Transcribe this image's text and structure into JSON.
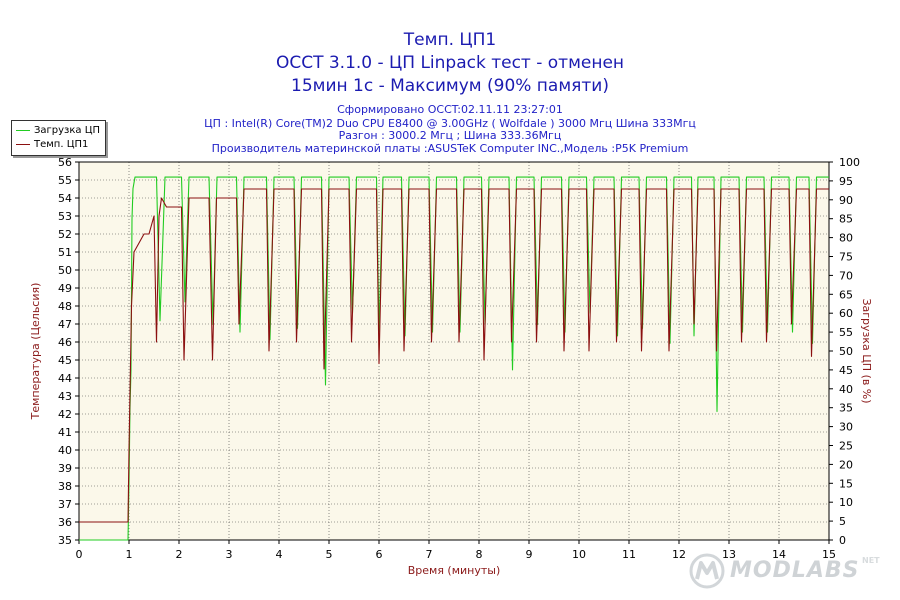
{
  "header": {
    "title1": "Темп. ЦП1",
    "title2": "OCCT 3.1.0 - ЦП Linpack тест - отменен",
    "title3": "15мин 1с - Максимум (90% памяти)",
    "info1": "Сформировано OCCT:02.11.11 23:27:01",
    "info2": "ЦП : Intel(R) Core(TM)2 Duo CPU E8400 @ 3.00GHz ( Wolfdale ) 3000 Мгц Шина 333Мгц",
    "info3": "Разгон : 3000.2 Мгц ; Шина 333.36Мгц",
    "info4": "Производитель материнской платы :ASUSTeK Computer INC.,Модель :P5K Premium"
  },
  "legend": {
    "items": [
      {
        "label": "Загрузка ЦП",
        "color": "#22cc22"
      },
      {
        "label": "Темп. ЦП1",
        "color": "#8b1010"
      }
    ]
  },
  "watermark": {
    "text": "MODLABS",
    "suffix": "NET"
  },
  "colors": {
    "load": "#22cc22",
    "temp": "#8b1010",
    "axis_text": "#8b1a1a",
    "plot_bg": "#fbf8ea",
    "grid": "#444444"
  },
  "chart_data": {
    "type": "line",
    "xlabel": "Время (минуты)",
    "ylabel_left": "Температура (Цельсия)",
    "ylabel_right": "Загрузка ЦП (в %)",
    "xlim": [
      0,
      15
    ],
    "ylim_left": [
      35,
      56
    ],
    "ylim_right": [
      0,
      100
    ],
    "x_ticks": [
      0,
      1,
      2,
      3,
      4,
      5,
      6,
      7,
      8,
      9,
      10,
      11,
      12,
      13,
      14,
      15
    ],
    "y_left_ticks": [
      35,
      36,
      37,
      38,
      39,
      40,
      41,
      42,
      43,
      44,
      45,
      46,
      47,
      48,
      49,
      50,
      51,
      52,
      53,
      54,
      55,
      56
    ],
    "y_right_ticks": [
      0,
      5,
      10,
      15,
      20,
      25,
      30,
      35,
      40,
      45,
      50,
      55,
      60,
      65,
      70,
      75,
      80,
      85,
      90,
      95,
      100
    ],
    "grid": true,
    "legend_position": "top-left",
    "series": [
      {
        "name": "Загрузка ЦП",
        "axis": "right",
        "x": [
          0,
          0.98,
          1.0,
          1.02,
          1.04,
          1.06,
          1.08,
          1.12,
          1.2,
          1.55,
          1.62,
          1.72,
          2.05,
          2.12,
          2.2,
          2.6,
          2.68,
          2.76,
          3.15,
          3.22,
          3.3,
          3.75,
          3.82,
          3.9,
          4.3,
          4.37,
          4.45,
          4.85,
          4.93,
          5.0,
          5.4,
          5.47,
          5.55,
          5.95,
          6.0,
          6.08,
          6.45,
          6.52,
          6.6,
          7.0,
          7.07,
          7.15,
          7.55,
          7.62,
          7.7,
          8.05,
          8.12,
          8.2,
          8.6,
          8.67,
          8.75,
          9.1,
          9.17,
          9.25,
          9.65,
          9.72,
          9.8,
          10.15,
          10.22,
          10.3,
          10.7,
          10.77,
          10.85,
          11.2,
          11.27,
          11.35,
          11.75,
          11.82,
          11.9,
          12.25,
          12.3,
          12.38,
          12.7,
          12.76,
          12.84,
          13.2,
          13.27,
          13.35,
          13.7,
          13.77,
          13.85,
          14.2,
          14.27,
          14.35,
          14.6,
          14.67,
          14.75,
          15.0
        ],
        "values": [
          0,
          0,
          15,
          35,
          45,
          85,
          93,
          96,
          96,
          96,
          58,
          96,
          96,
          63,
          96,
          96,
          57,
          96,
          96,
          55,
          96,
          96,
          53,
          96,
          96,
          56,
          96,
          96,
          41,
          96,
          96,
          60,
          96,
          96,
          55,
          96,
          96,
          54,
          96,
          96,
          55,
          96,
          96,
          55,
          96,
          96,
          57,
          96,
          96,
          45,
          96,
          96,
          57,
          96,
          96,
          55,
          96,
          96,
          60,
          96,
          96,
          54,
          96,
          96,
          56,
          96,
          96,
          52,
          96,
          96,
          54,
          96,
          96,
          34,
          96,
          96,
          55,
          96,
          96,
          55,
          96,
          96,
          55,
          96,
          96,
          52,
          96,
          96
        ]
      },
      {
        "name": "Темп. ЦП1",
        "axis": "left",
        "x": [
          0,
          0.98,
          1.0,
          1.05,
          1.1,
          1.2,
          1.3,
          1.4,
          1.5,
          1.55,
          1.6,
          1.65,
          1.75,
          2.05,
          2.1,
          2.2,
          2.6,
          2.67,
          2.75,
          3.15,
          3.2,
          3.3,
          3.75,
          3.8,
          3.9,
          4.3,
          4.35,
          4.45,
          4.85,
          4.9,
          5.0,
          5.4,
          5.45,
          5.55,
          5.95,
          6.0,
          6.08,
          6.45,
          6.5,
          6.6,
          7.0,
          7.05,
          7.15,
          7.55,
          7.6,
          7.7,
          8.05,
          8.1,
          8.2,
          8.6,
          8.65,
          8.75,
          9.1,
          9.15,
          9.25,
          9.65,
          9.7,
          9.8,
          10.15,
          10.2,
          10.3,
          10.7,
          10.75,
          10.85,
          11.2,
          11.25,
          11.35,
          11.75,
          11.8,
          11.9,
          12.25,
          12.3,
          12.38,
          12.7,
          12.75,
          12.84,
          13.2,
          13.25,
          13.35,
          13.7,
          13.75,
          13.85,
          14.2,
          14.25,
          14.35,
          14.6,
          14.65,
          14.75,
          15.0
        ],
        "values": [
          36,
          36,
          40,
          48,
          51,
          51.5,
          52,
          52,
          53,
          46,
          53,
          54,
          53.5,
          53.5,
          45,
          54,
          54,
          45,
          54,
          54,
          47,
          54.5,
          54.5,
          45.5,
          54.5,
          54.5,
          46,
          54.5,
          54.5,
          44.5,
          54.5,
          54.5,
          46,
          54.5,
          54.5,
          44.8,
          54.5,
          54.5,
          45.5,
          54.5,
          54.5,
          46,
          54.5,
          54.5,
          46,
          54.5,
          54.5,
          45,
          54.5,
          54.5,
          46,
          54.5,
          54.5,
          46,
          54.5,
          54.5,
          45.5,
          54.5,
          54.5,
          45.5,
          54.5,
          54.5,
          46,
          54.5,
          54.5,
          45.5,
          54.5,
          54.5,
          45.5,
          54.5,
          54.5,
          47,
          54.5,
          54.5,
          45.5,
          54.5,
          54.5,
          46,
          54.5,
          54.5,
          46,
          54.5,
          54.5,
          47,
          54.5,
          54.5,
          45.2,
          54.5,
          54.5
        ]
      }
    ]
  }
}
